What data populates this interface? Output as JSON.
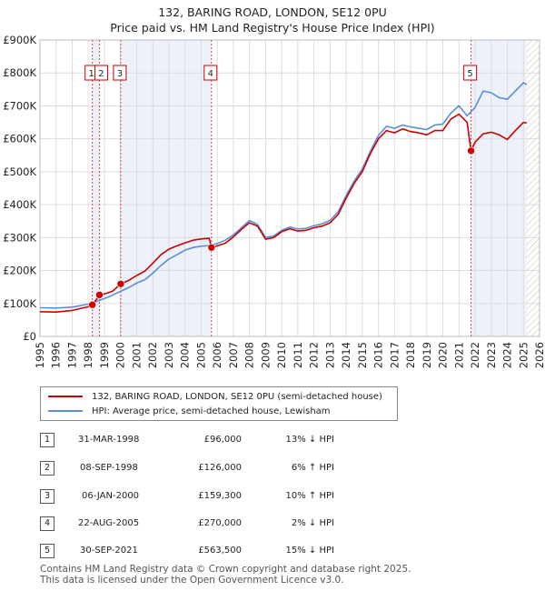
{
  "header": {
    "title": "132, BARING ROAD, LONDON, SE12 0PU",
    "subtitle": "Price paid vs. HM Land Registry's House Price Index (HPI)"
  },
  "chart_data": {
    "type": "line",
    "xlim": [
      1995,
      2026
    ],
    "ylim": [
      0,
      900000
    ],
    "x_ticks": [
      "1995",
      "1996",
      "1997",
      "1998",
      "1999",
      "2000",
      "2001",
      "2002",
      "2003",
      "2004",
      "2005",
      "2006",
      "2007",
      "2008",
      "2009",
      "2010",
      "2011",
      "2012",
      "2013",
      "2014",
      "2015",
      "2016",
      "2017",
      "2018",
      "2019",
      "2020",
      "2021",
      "2022",
      "2023",
      "2024",
      "2025",
      "2026"
    ],
    "y_ticks": [
      {
        "v": 0,
        "label": "£0"
      },
      {
        "v": 100000,
        "label": "£100K"
      },
      {
        "v": 200000,
        "label": "£200K"
      },
      {
        "v": 300000,
        "label": "£300K"
      },
      {
        "v": 400000,
        "label": "£400K"
      },
      {
        "v": 500000,
        "label": "£500K"
      },
      {
        "v": 600000,
        "label": "£600K"
      },
      {
        "v": 700000,
        "label": "£700K"
      },
      {
        "v": 800000,
        "label": "£800K"
      },
      {
        "v": 900000,
        "label": "£900K"
      }
    ],
    "grid": true,
    "shaded_ranges": [
      [
        1998.25,
        1998.69
      ],
      [
        2000.01,
        2005.64
      ],
      [
        2021.75,
        2025.2
      ]
    ],
    "hatch_from": 2025.2,
    "series": [
      {
        "name": "132, BARING ROAD, LONDON, SE12 0PU (semi-detached house)",
        "color": "#cc0000",
        "points": [
          [
            1995.0,
            75000
          ],
          [
            1996.0,
            74000
          ],
          [
            1997.0,
            79000
          ],
          [
            1998.0,
            90000
          ],
          [
            1998.25,
            96000
          ],
          [
            1998.5,
            112000
          ],
          [
            1998.69,
            126000
          ],
          [
            1999.0,
            129000
          ],
          [
            1999.5,
            137000
          ],
          [
            2000.01,
            159300
          ],
          [
            2000.5,
            170000
          ],
          [
            2001.0,
            185000
          ],
          [
            2001.5,
            198000
          ],
          [
            2002.0,
            222000
          ],
          [
            2002.5,
            248000
          ],
          [
            2003.0,
            265000
          ],
          [
            2003.5,
            275000
          ],
          [
            2004.0,
            284000
          ],
          [
            2004.5,
            292000
          ],
          [
            2005.0,
            296000
          ],
          [
            2005.5,
            298000
          ],
          [
            2005.64,
            270000
          ],
          [
            2006.0,
            275000
          ],
          [
            2006.5,
            283000
          ],
          [
            2007.0,
            302000
          ],
          [
            2007.5,
            325000
          ],
          [
            2008.0,
            345000
          ],
          [
            2008.5,
            335000
          ],
          [
            2009.0,
            295000
          ],
          [
            2009.5,
            300000
          ],
          [
            2010.0,
            318000
          ],
          [
            2010.5,
            327000
          ],
          [
            2011.0,
            320000
          ],
          [
            2011.5,
            322000
          ],
          [
            2012.0,
            330000
          ],
          [
            2012.5,
            335000
          ],
          [
            2013.0,
            345000
          ],
          [
            2013.5,
            370000
          ],
          [
            2014.0,
            420000
          ],
          [
            2014.5,
            465000
          ],
          [
            2015.0,
            500000
          ],
          [
            2015.5,
            555000
          ],
          [
            2016.0,
            600000
          ],
          [
            2016.5,
            625000
          ],
          [
            2017.0,
            618000
          ],
          [
            2017.5,
            630000
          ],
          [
            2018.0,
            622000
          ],
          [
            2018.5,
            618000
          ],
          [
            2019.0,
            612000
          ],
          [
            2019.5,
            625000
          ],
          [
            2020.0,
            625000
          ],
          [
            2020.5,
            660000
          ],
          [
            2021.0,
            675000
          ],
          [
            2021.5,
            650000
          ],
          [
            2021.75,
            563500
          ],
          [
            2022.0,
            590000
          ],
          [
            2022.5,
            615000
          ],
          [
            2023.0,
            620000
          ],
          [
            2023.5,
            612000
          ],
          [
            2024.0,
            598000
          ],
          [
            2024.5,
            625000
          ],
          [
            2025.0,
            650000
          ],
          [
            2025.2,
            648000
          ]
        ]
      },
      {
        "name": "HPI: Average price, semi-detached house, Lewisham",
        "color": "#5a8fd6",
        "points": [
          [
            1995.0,
            87000
          ],
          [
            1996.0,
            86000
          ],
          [
            1997.0,
            89000
          ],
          [
            1998.0,
            98000
          ],
          [
            1998.5,
            106000
          ],
          [
            1999.0,
            115000
          ],
          [
            1999.5,
            125000
          ],
          [
            2000.0,
            137000
          ],
          [
            2000.5,
            148000
          ],
          [
            2001.0,
            162000
          ],
          [
            2001.5,
            172000
          ],
          [
            2002.0,
            192000
          ],
          [
            2002.5,
            215000
          ],
          [
            2003.0,
            235000
          ],
          [
            2003.5,
            248000
          ],
          [
            2004.0,
            262000
          ],
          [
            2004.5,
            270000
          ],
          [
            2005.0,
            274000
          ],
          [
            2005.5,
            276000
          ],
          [
            2006.0,
            282000
          ],
          [
            2006.5,
            292000
          ],
          [
            2007.0,
            308000
          ],
          [
            2007.5,
            330000
          ],
          [
            2008.0,
            352000
          ],
          [
            2008.5,
            340000
          ],
          [
            2009.0,
            300000
          ],
          [
            2009.5,
            305000
          ],
          [
            2010.0,
            322000
          ],
          [
            2010.5,
            332000
          ],
          [
            2011.0,
            326000
          ],
          [
            2011.5,
            328000
          ],
          [
            2012.0,
            336000
          ],
          [
            2012.5,
            342000
          ],
          [
            2013.0,
            352000
          ],
          [
            2013.5,
            378000
          ],
          [
            2014.0,
            428000
          ],
          [
            2014.5,
            472000
          ],
          [
            2015.0,
            508000
          ],
          [
            2015.5,
            562000
          ],
          [
            2016.0,
            610000
          ],
          [
            2016.5,
            638000
          ],
          [
            2017.0,
            632000
          ],
          [
            2017.5,
            642000
          ],
          [
            2018.0,
            636000
          ],
          [
            2018.5,
            632000
          ],
          [
            2019.0,
            628000
          ],
          [
            2019.5,
            642000
          ],
          [
            2020.0,
            645000
          ],
          [
            2020.5,
            678000
          ],
          [
            2021.0,
            700000
          ],
          [
            2021.5,
            670000
          ],
          [
            2022.0,
            695000
          ],
          [
            2022.5,
            745000
          ],
          [
            2023.0,
            740000
          ],
          [
            2023.5,
            725000
          ],
          [
            2024.0,
            720000
          ],
          [
            2024.5,
            745000
          ],
          [
            2025.0,
            770000
          ],
          [
            2025.2,
            765000
          ]
        ]
      }
    ],
    "transactions": [
      {
        "num": "1",
        "x": 1998.25,
        "y": 96000,
        "date": "31-MAR-1998",
        "price": "£96,000",
        "hpi": "13% ↓ HPI"
      },
      {
        "num": "2",
        "x": 1998.69,
        "y": 126000,
        "date": "08-SEP-1998",
        "price": "£126,000",
        "hpi": "6% ↑ HPI"
      },
      {
        "num": "3",
        "x": 2000.01,
        "y": 159300,
        "date": "06-JAN-2000",
        "price": "£159,300",
        "hpi": "10% ↑ HPI"
      },
      {
        "num": "4",
        "x": 2005.64,
        "y": 270000,
        "date": "22-AUG-2005",
        "price": "£270,000",
        "hpi": "2% ↓ HPI"
      },
      {
        "num": "5",
        "x": 2021.75,
        "y": 563500,
        "date": "30-SEP-2021",
        "price": "£563,500",
        "hpi": "15% ↓ HPI"
      }
    ]
  },
  "legend": {
    "property": "132, BARING ROAD, LONDON, SE12 0PU (semi-detached house)",
    "hpi": "HPI: Average price, semi-detached house, Lewisham",
    "property_color": "#cc0000",
    "hpi_color": "#5a8fd6"
  },
  "footer": {
    "line1": "Contains HM Land Registry data © Crown copyright and database right 2025.",
    "line2": "This data is licensed under the Open Government Licence v3.0."
  }
}
